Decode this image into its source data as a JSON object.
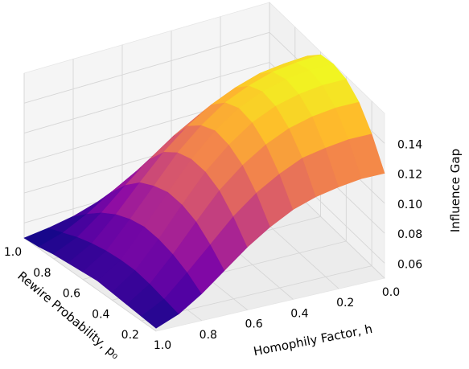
{
  "chart_data": {
    "type": "surface3d",
    "title": "",
    "colormap": "plasma",
    "colormap_stops": [
      "#0d0887",
      "#5302a3",
      "#8b0aa5",
      "#b83289",
      "#db5c68",
      "#f48849",
      "#febd2a",
      "#f0f921"
    ],
    "grid": true,
    "x_axis": {
      "label": "Homophily Factor, h",
      "ticks": [
        1.0,
        0.8,
        0.6,
        0.4,
        0.2,
        0.0
      ],
      "tick_labels": [
        "1.0",
        "0.8",
        "0.6",
        "0.4",
        "0.2",
        "0.0"
      ],
      "range": [
        0.0,
        1.0
      ]
    },
    "y_axis": {
      "label": "Rewire Probability, p₀",
      "ticks": [
        1.0,
        0.8,
        0.6,
        0.4,
        0.2
      ],
      "tick_labels": [
        "1.0",
        "0.8",
        "0.6",
        "0.4",
        "0.2"
      ],
      "range": [
        0.1,
        1.0
      ]
    },
    "z_axis": {
      "label": "Influence Gap",
      "ticks": [
        0.06,
        0.08,
        0.1,
        0.12,
        0.14
      ],
      "tick_labels": [
        "0.06",
        "0.08",
        "0.10",
        "0.12",
        "0.14"
      ],
      "range": [
        0.05,
        0.16
      ]
    },
    "surface": {
      "h": [
        1.0,
        0.9,
        0.8,
        0.7,
        0.6,
        0.5,
        0.4,
        0.3,
        0.2,
        0.1,
        0.0
      ],
      "p0": [
        1.0,
        0.9,
        0.8,
        0.7,
        0.6,
        0.5,
        0.4,
        0.3,
        0.2,
        0.1
      ],
      "z": [
        [
          0.05,
          0.052,
          0.055,
          0.06,
          0.065,
          0.07,
          0.076,
          0.081,
          0.085,
          0.087,
          0.088
        ],
        [
          0.051,
          0.056,
          0.064,
          0.074,
          0.083,
          0.091,
          0.098,
          0.104,
          0.108,
          0.11,
          0.111
        ],
        [
          0.053,
          0.06,
          0.072,
          0.086,
          0.099,
          0.11,
          0.119,
          0.126,
          0.13,
          0.133,
          0.134
        ],
        [
          0.054,
          0.063,
          0.078,
          0.095,
          0.111,
          0.124,
          0.134,
          0.141,
          0.146,
          0.148,
          0.149
        ],
        [
          0.055,
          0.065,
          0.082,
          0.1,
          0.118,
          0.132,
          0.143,
          0.15,
          0.155,
          0.157,
          0.158
        ],
        [
          0.056,
          0.066,
          0.084,
          0.103,
          0.121,
          0.136,
          0.147,
          0.154,
          0.158,
          0.16,
          0.16
        ],
        [
          0.055,
          0.066,
          0.083,
          0.102,
          0.12,
          0.134,
          0.145,
          0.152,
          0.156,
          0.158,
          0.158
        ],
        [
          0.054,
          0.064,
          0.08,
          0.098,
          0.115,
          0.128,
          0.138,
          0.145,
          0.149,
          0.151,
          0.151
        ],
        [
          0.053,
          0.061,
          0.075,
          0.09,
          0.105,
          0.117,
          0.126,
          0.133,
          0.136,
          0.138,
          0.138
        ],
        [
          0.052,
          0.058,
          0.068,
          0.08,
          0.092,
          0.102,
          0.11,
          0.115,
          0.118,
          0.12,
          0.12
        ]
      ]
    }
  }
}
